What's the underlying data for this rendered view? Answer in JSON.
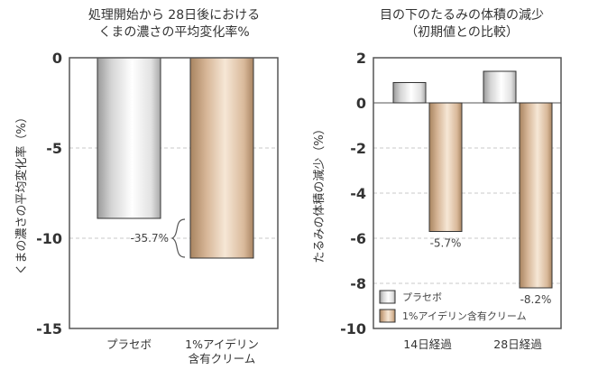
{
  "chart_data": [
    {
      "type": "bar",
      "title_lines": [
        "処理開始から 28日後における",
        "くまの濃さの平均変化率%"
      ],
      "ylabel": "くまの濃さの平均変化率（%）",
      "ylim": [
        -15,
        0
      ],
      "yticks": [
        0,
        -5,
        -10,
        -15
      ],
      "ytick_labels": [
        "0",
        "-5",
        "-10",
        "-15"
      ],
      "grid": true,
      "categories": [
        {
          "lines": [
            "プラセボ"
          ]
        },
        {
          "lines": [
            "1%アイデリン",
            "含有クリーム"
          ]
        }
      ],
      "values": [
        -8.9,
        -11.1
      ],
      "bar_styles": [
        "silver",
        "bronze"
      ],
      "annotation": "-35.7%"
    },
    {
      "type": "bar",
      "title_lines": [
        "目の下のたるみの体積の減少",
        "（初期値との比較）"
      ],
      "ylabel": "たるみの体積の減少（%）",
      "ylim": [
        -10,
        2
      ],
      "yticks": [
        2,
        0,
        -2,
        -4,
        -6,
        -8,
        -10
      ],
      "ytick_labels": [
        "2",
        "0",
        "-2",
        "-4",
        "-6",
        "-8",
        "-10"
      ],
      "grid": true,
      "categories": [
        "14日経過",
        "28日経過"
      ],
      "series": [
        {
          "name": "プラセボ",
          "style": "silver",
          "values": [
            0.9,
            1.4
          ]
        },
        {
          "name": "1%アイデリン含有クリーム",
          "style": "bronze",
          "values": [
            -5.7,
            -8.2
          ]
        }
      ],
      "data_labels": [
        "-5.7%",
        "-8.2%"
      ],
      "legend_position": "bottom-left"
    }
  ]
}
